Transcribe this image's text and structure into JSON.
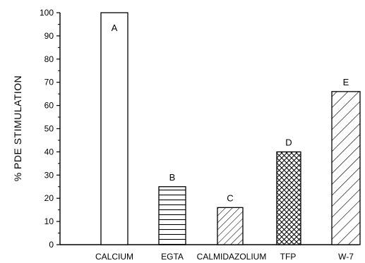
{
  "chart_data": {
    "type": "bar",
    "ylabel": "% PDE STIMULATION",
    "xlabel": "",
    "ylim": [
      0,
      100
    ],
    "yticks": [
      "0",
      "10",
      "20",
      "30",
      "40",
      "50",
      "60",
      "70",
      "80",
      "90",
      "100"
    ],
    "categories": [
      "CALCIUM",
      "EGTA",
      "CALMIDAZOLIUM",
      "TFP",
      "W-7"
    ],
    "values": [
      100,
      25,
      16,
      40,
      66
    ],
    "bar_labels": [
      "A",
      "B",
      "C",
      "D",
      "E"
    ],
    "bar_fills": [
      "empty",
      "horizontal-lines",
      "diagonal-lines",
      "crosshatch",
      "diagonal-lines"
    ],
    "grid": false,
    "legend": "none"
  }
}
